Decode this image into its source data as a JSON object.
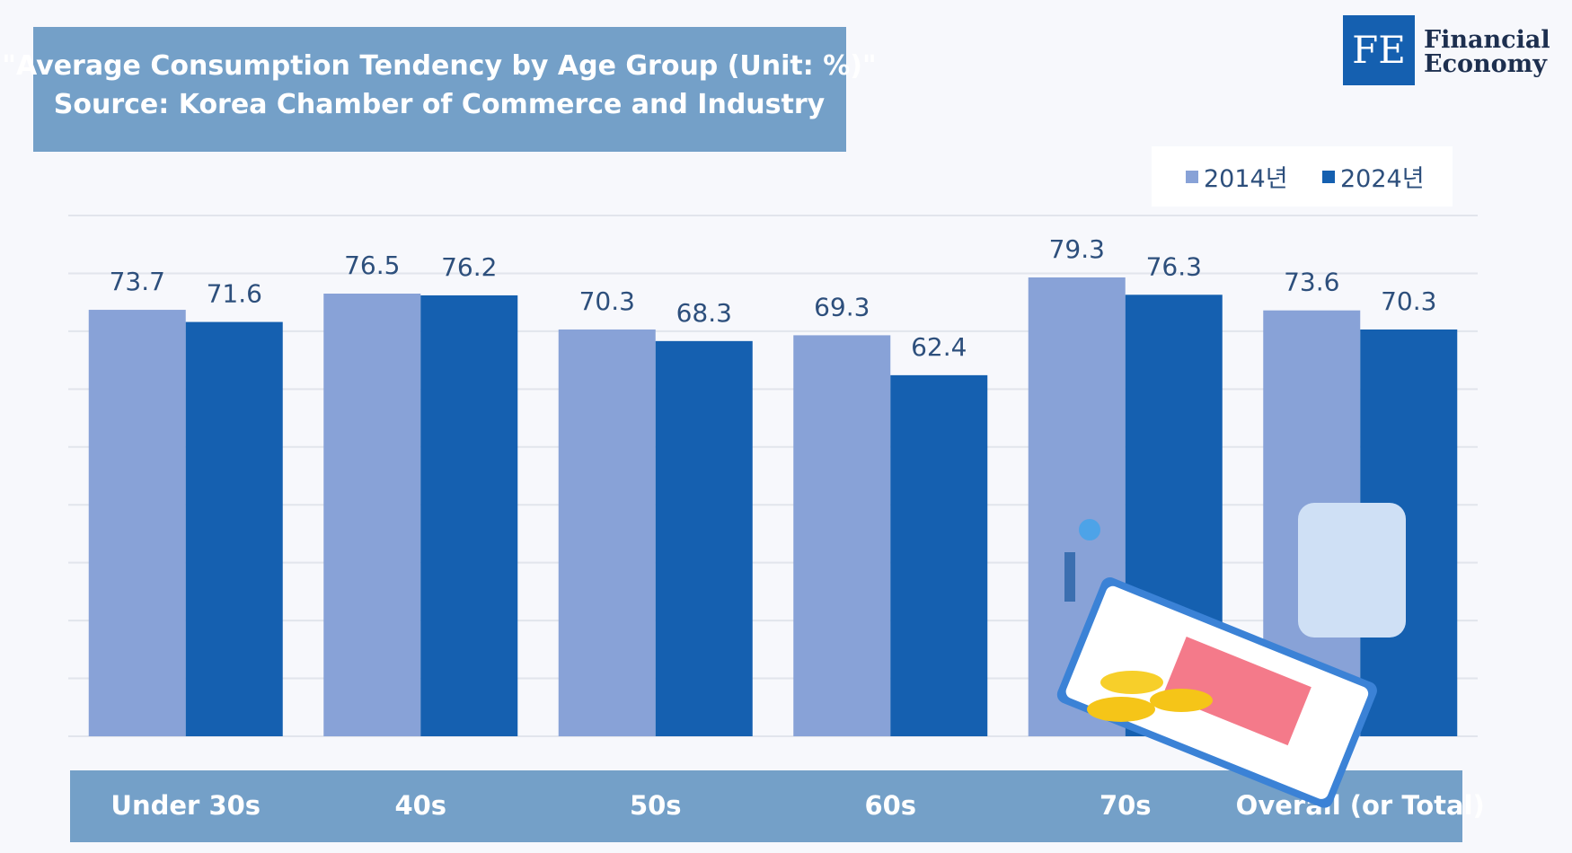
{
  "logo": {
    "mark": "FE",
    "lines": [
      "Financial",
      "Economy"
    ]
  },
  "chart_data": {
    "type": "bar",
    "title": "\"Average Consumption Tendency by Age Group (Unit: %)\"",
    "subtitle": "Source: Korea Chamber of Commerce and Industry",
    "categories": [
      "Under 30s",
      "40s",
      "50s",
      "60s",
      "70s",
      "Overall (or Total)"
    ],
    "series": [
      {
        "name": "2014년",
        "color": "#88a2d7",
        "values": [
          73.7,
          76.5,
          70.3,
          69.3,
          79.3,
          73.6
        ]
      },
      {
        "name": "2024년",
        "color": "#1560b0",
        "values": [
          71.6,
          76.2,
          68.3,
          62.4,
          76.3,
          70.3
        ]
      }
    ],
    "ylim": [
      0,
      90
    ],
    "yticks": [
      0,
      10,
      20,
      30,
      40,
      50,
      60,
      70,
      80,
      90
    ],
    "grid": true,
    "legend": "top-right"
  }
}
